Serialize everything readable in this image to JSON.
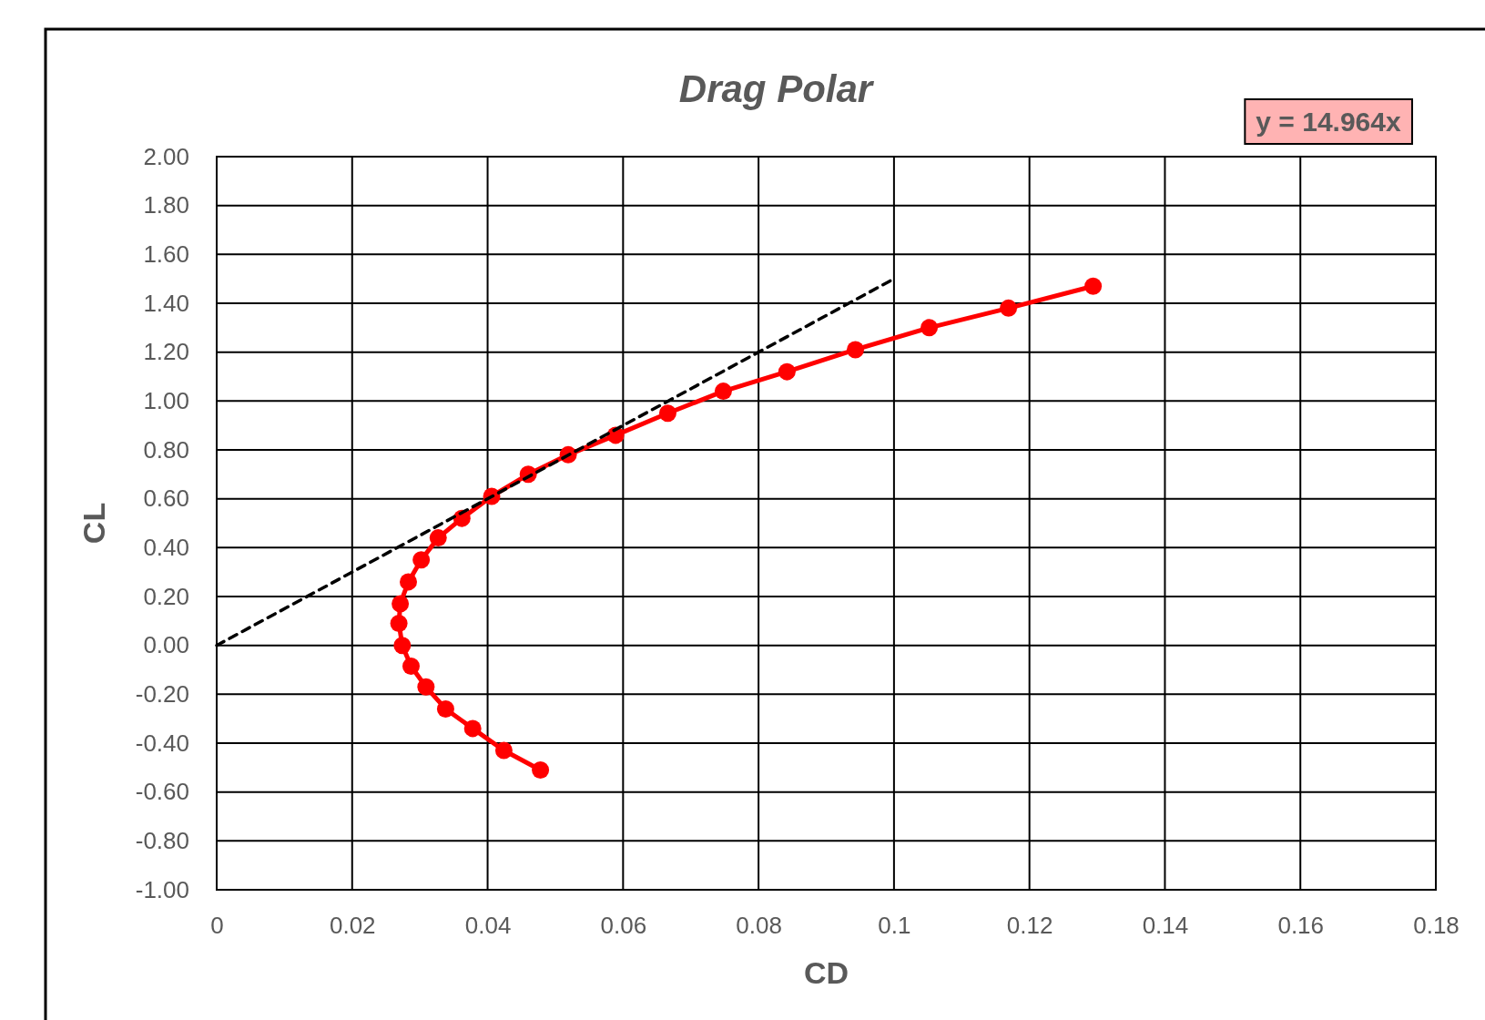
{
  "chart_data": {
    "type": "line",
    "title": "Drag Polar",
    "xlabel": "CD",
    "ylabel": "CL",
    "xlim": [
      0,
      0.18
    ],
    "xticks": [
      0,
      0.02,
      0.04,
      0.06,
      0.08,
      0.1,
      0.12,
      0.14,
      0.16,
      0.18
    ],
    "ylim": [
      -1,
      2
    ],
    "yticks": [
      {
        "value": -1,
        "label": "-1.00"
      },
      {
        "value": -0.8,
        "label": "-0.80"
      },
      {
        "value": -0.6,
        "label": "-0.60"
      },
      {
        "value": -0.4,
        "label": "-0.40"
      },
      {
        "value": -0.2,
        "label": "-0.20"
      },
      {
        "value": 0,
        "label": "0.00"
      },
      {
        "value": 0.2,
        "label": "0.20"
      },
      {
        "value": 0.4,
        "label": "0.40"
      },
      {
        "value": 0.6,
        "label": "0.60"
      },
      {
        "value": 0.8,
        "label": "0.80"
      },
      {
        "value": 1,
        "label": "1.00"
      },
      {
        "value": 1.2,
        "label": "1.20"
      },
      {
        "value": 1.4,
        "label": "1.40"
      },
      {
        "value": 1.6,
        "label": "1.60"
      },
      {
        "value": 1.8,
        "label": "1.80"
      },
      {
        "value": 2,
        "label": "2.00"
      }
    ],
    "grid": true,
    "series": [
      {
        "color": "#ff0000",
        "marker": "circle",
        "line_style": "solid",
        "x": [
          0.0478,
          0.0424,
          0.0378,
          0.0338,
          0.0309,
          0.0287,
          0.0274,
          0.0269,
          0.0271,
          0.0283,
          0.0302,
          0.0327,
          0.0362,
          0.0406,
          0.046,
          0.0519,
          0.0589,
          0.0666,
          0.0748,
          0.0842,
          0.0943,
          0.1052,
          0.1169,
          0.1294
        ],
        "values": [
          -0.51,
          -0.43,
          -0.34,
          -0.26,
          -0.17,
          -0.085,
          0,
          0.09,
          0.17,
          0.26,
          0.35,
          0.44,
          0.52,
          0.61,
          0.7,
          0.78,
          0.86,
          0.95,
          1.04,
          1.12,
          1.21,
          1.3,
          1.38,
          1.47
        ]
      },
      {
        "type": "line",
        "color": "#000000",
        "marker": "none",
        "line_style": "dashed",
        "x": [
          0,
          0.1
        ],
        "values": [
          0,
          1.5
        ]
      }
    ],
    "annotations": [
      "y = 14.964x"
    ]
  }
}
